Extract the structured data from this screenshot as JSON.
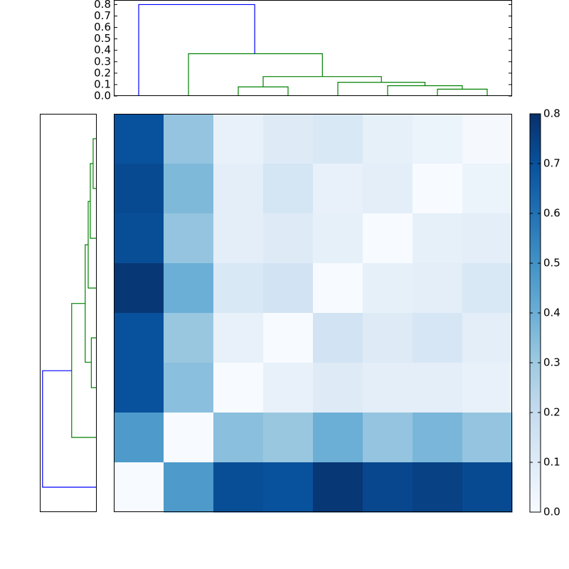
{
  "chart_data": [
    {
      "type": "dendrogram",
      "orientation": "top",
      "xlim": [
        0,
        80
      ],
      "ylim": [
        0,
        0.84
      ],
      "yticks": [
        {
          "value": 0,
          "label": "0.0"
        },
        0.1,
        0.2,
        0.3,
        0.4,
        0.5,
        0.6,
        0.7,
        0.8
      ],
      "links": [
        {
          "icoord": [
            25,
            25,
            35,
            35
          ],
          "dcoord": [
            0,
            0.08,
            0.08,
            0
          ],
          "color": "#008000"
        },
        {
          "icoord": [
            65,
            65,
            75,
            75
          ],
          "dcoord": [
            0,
            0.06,
            0.06,
            0
          ],
          "color": "#008000"
        },
        {
          "icoord": [
            55,
            55,
            70,
            70
          ],
          "dcoord": [
            0,
            0.09,
            0.09,
            0.06
          ],
          "color": "#008000"
        },
        {
          "icoord": [
            45,
            45,
            62.5,
            62.5
          ],
          "dcoord": [
            0,
            0.12,
            0.12,
            0.09
          ],
          "color": "#008000"
        },
        {
          "icoord": [
            30,
            30,
            53.75,
            53.75
          ],
          "dcoord": [
            0.08,
            0.17,
            0.17,
            0.12
          ],
          "color": "#008000"
        },
        {
          "icoord": [
            15,
            15,
            41.9,
            41.9
          ],
          "dcoord": [
            0,
            0.37,
            0.37,
            0.17
          ],
          "color": "#008000"
        },
        {
          "icoord": [
            5,
            5,
            28.3,
            28.3
          ],
          "dcoord": [
            0,
            0.8,
            0.8,
            0.37
          ],
          "color": "#0000ff"
        }
      ]
    },
    {
      "type": "heatmap",
      "colormap": "Blues",
      "clim": [
        0,
        0.8
      ],
      "colorbar_ticks": [
        {
          "value": 0,
          "label": "0.0"
        },
        0.1,
        0.2,
        0.3,
        0.4,
        0.5,
        0.6,
        0.7,
        0.8
      ],
      "values": [
        [
          0.7,
          0.32,
          0.06,
          0.1,
          0.12,
          0.07,
          0.05,
          0.01
        ],
        [
          0.72,
          0.36,
          0.08,
          0.14,
          0.06,
          0.08,
          0.0,
          0.05
        ],
        [
          0.71,
          0.32,
          0.08,
          0.1,
          0.07,
          0.0,
          0.07,
          0.08
        ],
        [
          0.78,
          0.4,
          0.12,
          0.15,
          0.0,
          0.07,
          0.08,
          0.12
        ],
        [
          0.7,
          0.31,
          0.06,
          0.0,
          0.15,
          0.1,
          0.13,
          0.08
        ],
        [
          0.7,
          0.34,
          0.0,
          0.06,
          0.1,
          0.08,
          0.08,
          0.06
        ],
        [
          0.47,
          0.0,
          0.34,
          0.31,
          0.4,
          0.32,
          0.37,
          0.32
        ],
        [
          0.0,
          0.47,
          0.71,
          0.7,
          0.78,
          0.73,
          0.75,
          0.72
        ]
      ]
    },
    {
      "type": "dendrogram",
      "orientation": "left",
      "xlim": [
        0.84,
        0
      ],
      "ylim": [
        80,
        0
      ],
      "links": [
        {
          "icoord": [
            5,
            5,
            15,
            15
          ],
          "dcoord": [
            0,
            0.053,
            0.053,
            0
          ],
          "color": "#008000"
        },
        {
          "icoord": [
            10,
            10,
            25,
            25
          ],
          "dcoord": [
            0.053,
            0.095,
            0.095,
            0
          ],
          "color": "#008000"
        },
        {
          "icoord": [
            17.6,
            17.6,
            35,
            35
          ],
          "dcoord": [
            0.095,
            0.126,
            0.126,
            0
          ],
          "color": "#008000"
        },
        {
          "icoord": [
            45,
            45,
            55,
            55
          ],
          "dcoord": [
            0,
            0.08,
            0.08,
            0
          ],
          "color": "#008000"
        },
        {
          "icoord": [
            26.3,
            26.3,
            49.9,
            49.9
          ],
          "dcoord": [
            0.126,
            0.17,
            0.17,
            0.08
          ],
          "color": "#008000"
        },
        {
          "icoord": [
            38.1,
            38.1,
            65,
            65
          ],
          "dcoord": [
            0.17,
            0.37,
            0.37,
            0
          ],
          "color": "#008000"
        },
        {
          "icoord": [
            51.6,
            51.6,
            75,
            75
          ],
          "dcoord": [
            0.37,
            0.8,
            0.8,
            0
          ],
          "color": "#0000ff"
        }
      ]
    }
  ]
}
